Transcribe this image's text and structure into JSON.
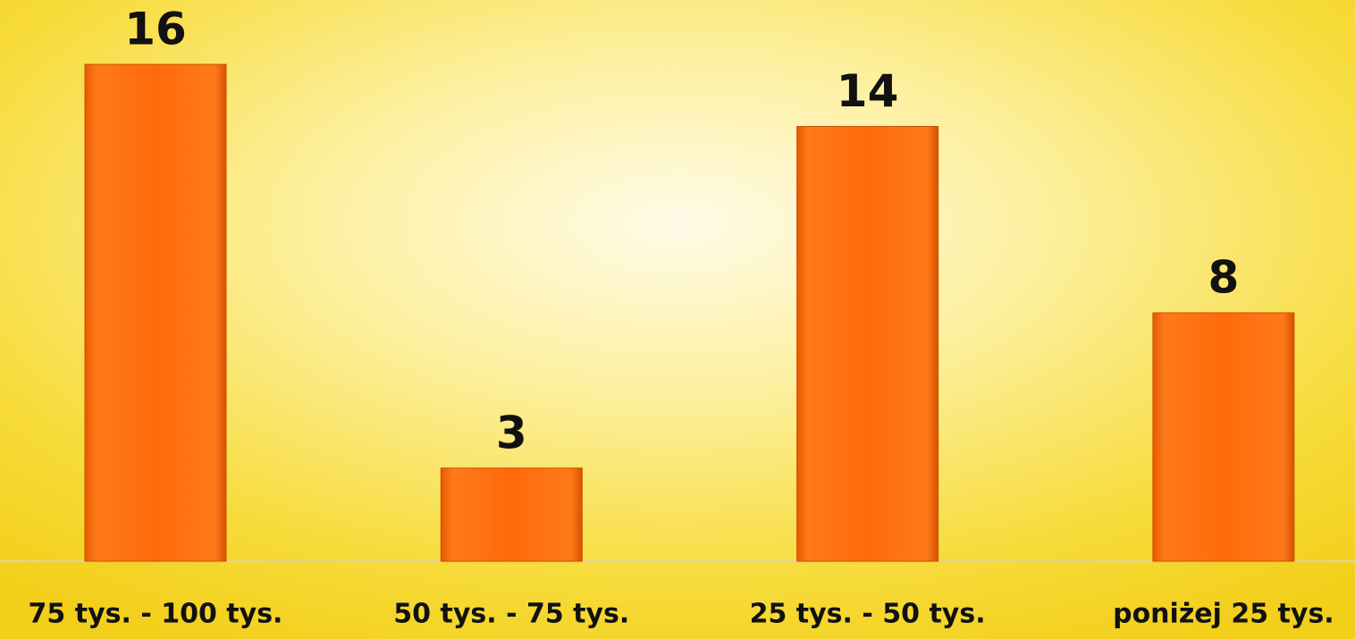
{
  "chart_data": {
    "type": "bar",
    "categories": [
      "75 tys. - 100 tys.",
      "50 tys. - 75 tys.",
      "25 tys. - 50 tys.",
      "poniżej 25 tys."
    ],
    "values": [
      16,
      3,
      14,
      8
    ],
    "color": "#ff6a0a"
  }
}
